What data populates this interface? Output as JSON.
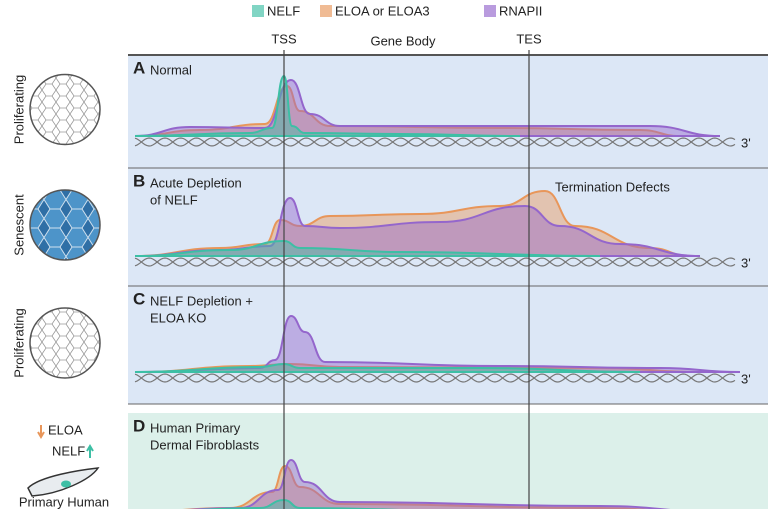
{
  "legend": [
    {
      "label": "NELF",
      "color": "#3dbfa5"
    },
    {
      "label": "ELOA or ELOA3",
      "color": "#e8965a"
    },
    {
      "label": "RNAPII",
      "color": "#9466cc"
    }
  ],
  "axis_labels": {
    "tss": "TSS",
    "gene_body": "Gene Body",
    "tes": "TES"
  },
  "panels": [
    {
      "letter": "A",
      "title": [
        "Normal"
      ],
      "state": "Proliferating",
      "end_label": "3'"
    },
    {
      "letter": "B",
      "title": [
        "Acute Depletion",
        "of NELF"
      ],
      "state": "Senescent",
      "end_label": "3'",
      "note": "Termination Defects"
    },
    {
      "letter": "C",
      "title": [
        "NELF Depletion +",
        "ELOA KO"
      ],
      "state": "Proliferating",
      "end_label": "3'"
    },
    {
      "letter": "D",
      "title": [
        "Human Primary",
        "Dermal Fibroblasts"
      ]
    }
  ],
  "cell_key": {
    "down": "ELOA",
    "up": "NELF",
    "cell": "Primary Human"
  }
}
